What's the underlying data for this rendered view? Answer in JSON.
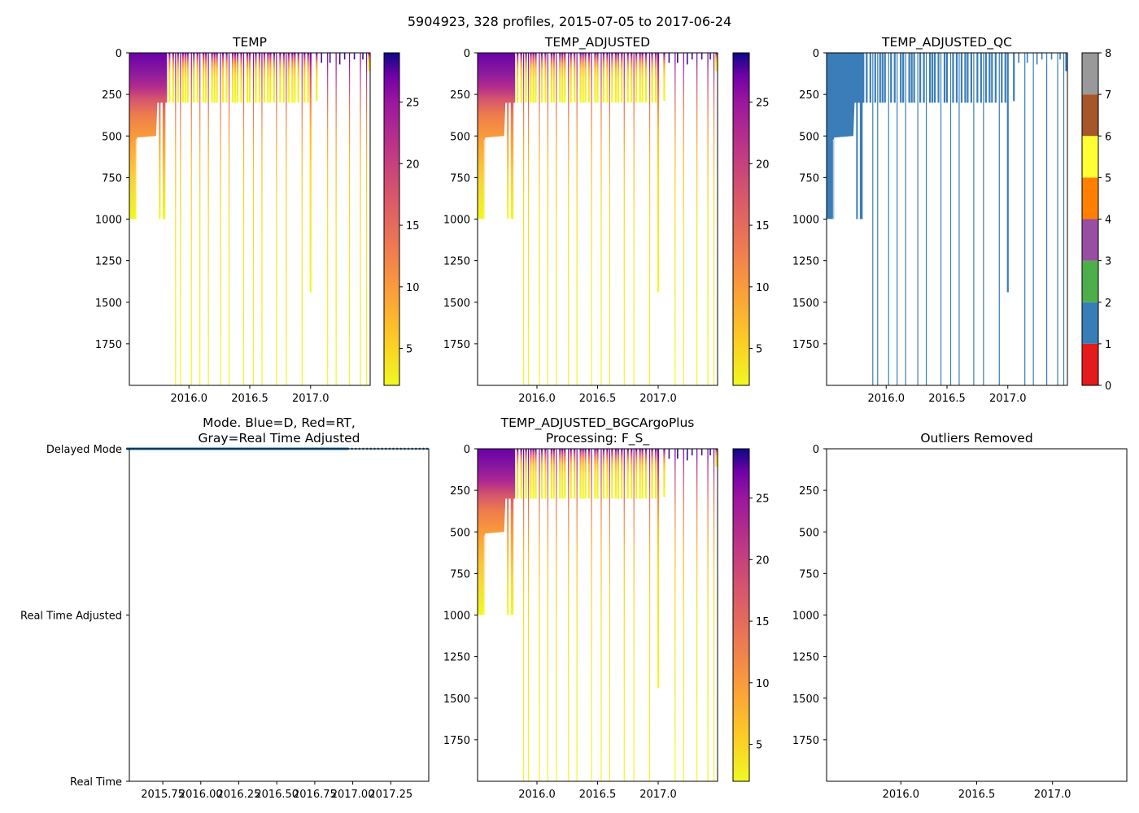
{
  "figure_title": "5904923, 328 profiles, 2015-07-05 to 2017-06-24",
  "chart_data": [
    {
      "type": "heatmap",
      "title": "TEMP",
      "xlim": [
        2015.51,
        2017.49
      ],
      "ylim": [
        2000,
        0
      ],
      "xticks": [
        2016.0,
        2016.5,
        2017.0
      ],
      "xtick_labels": [
        "2016.0",
        "2016.5",
        "2017.0"
      ],
      "yticks": [
        0,
        250,
        500,
        750,
        1000,
        1250,
        1500,
        1750
      ],
      "ytick_labels": [
        "0",
        "250",
        "500",
        "750",
        "1000",
        "1250",
        "1500",
        "1750"
      ],
      "colorbar": {
        "colormap": "plasma_r",
        "min": 2,
        "max": 29,
        "ticks": [
          5,
          10,
          15,
          20,
          25
        ],
        "tick_labels": [
          "5",
          "10",
          "15",
          "20",
          "25"
        ]
      }
    },
    {
      "type": "heatmap",
      "title": "TEMP_ADJUSTED",
      "xlim": [
        2015.51,
        2017.49
      ],
      "ylim": [
        2000,
        0
      ],
      "xticks": [
        2016.0,
        2016.5,
        2017.0
      ],
      "xtick_labels": [
        "2016.0",
        "2016.5",
        "2017.0"
      ],
      "yticks": [
        0,
        250,
        500,
        750,
        1000,
        1250,
        1500,
        1750
      ],
      "ytick_labels": [
        "0",
        "250",
        "500",
        "750",
        "1000",
        "1250",
        "1500",
        "1750"
      ],
      "colorbar": {
        "colormap": "plasma_r",
        "min": 2,
        "max": 29,
        "ticks": [
          5,
          10,
          15,
          20,
          25
        ],
        "tick_labels": [
          "5",
          "10",
          "15",
          "20",
          "25"
        ]
      }
    },
    {
      "type": "heatmap",
      "title": "TEMP_ADJUSTED_QC",
      "xlim": [
        2015.51,
        2017.49
      ],
      "ylim": [
        2000,
        0
      ],
      "xticks": [
        2016.0,
        2016.5,
        2017.0
      ],
      "xtick_labels": [
        "2016.0",
        "2016.5",
        "2017.0"
      ],
      "yticks": [
        0,
        250,
        500,
        750,
        1000,
        1250,
        1500,
        1750
      ],
      "ytick_labels": [
        "0",
        "250",
        "500",
        "750",
        "1000",
        "1250",
        "1500",
        "1750"
      ],
      "qc_value_shown": 1,
      "colorbar": {
        "type": "categorical",
        "min": 0,
        "max": 8,
        "ticks": [
          0,
          1,
          2,
          3,
          4,
          5,
          6,
          7,
          8
        ],
        "tick_labels": [
          "0",
          "1",
          "2",
          "3",
          "4",
          "5",
          "6",
          "7",
          "8"
        ],
        "colors": [
          "#e41a1c",
          "#377eb8",
          "#4daf4a",
          "#984ea3",
          "#ff7f00",
          "#ffff33",
          "#a65628",
          "#f781bf",
          "#999999"
        ]
      }
    },
    {
      "type": "scatter",
      "title": "Mode. Blue=D, Red=RT,\nGray=Real Time Adjusted",
      "xlim": [
        2015.53,
        2017.5
      ],
      "ylim": [
        0,
        2
      ],
      "xticks": [
        2015.75,
        2016.0,
        2016.25,
        2016.5,
        2016.75,
        2017.0,
        2017.25
      ],
      "xtick_labels": [
        "2015.75",
        "2016.00",
        "2016.25",
        "2016.50",
        "2016.75",
        "2017.00",
        "2017.25"
      ],
      "yticks": [
        0,
        1,
        2
      ],
      "ytick_labels": [
        "Real Time",
        "Real Time Adjusted",
        "Delayed Mode"
      ],
      "series": [
        {
          "name": "Delayed Mode",
          "color": "#1f77b4",
          "y": 2,
          "x_dense_range": [
            2015.51,
            2016.97
          ],
          "x_sparse_range": [
            2016.97,
            2017.49
          ]
        }
      ]
    },
    {
      "type": "heatmap",
      "title": "TEMP_ADJUSTED_BGCArgoPlus\nProcessing: F_S_",
      "xlim": [
        2015.51,
        2017.49
      ],
      "ylim": [
        2000,
        0
      ],
      "xticks": [
        2016.0,
        2016.5,
        2017.0
      ],
      "xtick_labels": [
        "2016.0",
        "2016.5",
        "2017.0"
      ],
      "yticks": [
        0,
        250,
        500,
        750,
        1000,
        1250,
        1500,
        1750
      ],
      "ytick_labels": [
        "0",
        "250",
        "500",
        "750",
        "1000",
        "1250",
        "1500",
        "1750"
      ],
      "colorbar": {
        "colormap": "plasma_r",
        "min": 2,
        "max": 29,
        "ticks": [
          5,
          10,
          15,
          20,
          25
        ],
        "tick_labels": [
          "5",
          "10",
          "15",
          "20",
          "25"
        ]
      }
    },
    {
      "type": "scatter",
      "title": "Outliers Removed",
      "xlim": [
        2015.51,
        2017.49
      ],
      "ylim": [
        2000,
        0
      ],
      "xticks": [
        2016.0,
        2016.5,
        2017.0
      ],
      "xtick_labels": [
        "2016.0",
        "2016.5",
        "2017.0"
      ],
      "yticks": [
        0,
        250,
        500,
        750,
        1000,
        1250,
        1500,
        1750
      ],
      "ytick_labels": [
        "0",
        "250",
        "500",
        "750",
        "1000",
        "1250",
        "1500",
        "1750"
      ],
      "series": []
    }
  ],
  "profiles": {
    "dense": {
      "start": 2015.51,
      "end": 2015.82,
      "count": 170,
      "depth_m": [
        [
          2015.51,
          1000
        ],
        [
          2015.56,
          995
        ],
        [
          2015.57,
          510
        ],
        [
          2015.73,
          500
        ],
        [
          2015.74,
          300
        ],
        [
          2015.82,
          300
        ]
      ]
    },
    "deep_dense": [
      2015.535,
      2015.55,
      2015.565,
      2015.76,
      2015.79,
      2015.8
    ],
    "sparse": [
      [
        2015.84,
        300
      ],
      [
        2015.87,
        300
      ],
      [
        2015.89,
        2000
      ],
      [
        2015.91,
        300
      ],
      [
        2015.93,
        2000
      ],
      [
        2015.95,
        300
      ],
      [
        2015.97,
        300
      ],
      [
        2015.99,
        300
      ],
      [
        2016.02,
        2000
      ],
      [
        2016.04,
        300
      ],
      [
        2016.07,
        300
      ],
      [
        2016.09,
        2000
      ],
      [
        2016.12,
        300
      ],
      [
        2016.14,
        300
      ],
      [
        2016.16,
        2000
      ],
      [
        2016.19,
        300
      ],
      [
        2016.21,
        300
      ],
      [
        2016.23,
        300
      ],
      [
        2016.26,
        2000
      ],
      [
        2016.28,
        300
      ],
      [
        2016.31,
        300
      ],
      [
        2016.33,
        2000
      ],
      [
        2016.36,
        300
      ],
      [
        2016.38,
        300
      ],
      [
        2016.4,
        300
      ],
      [
        2016.43,
        300
      ],
      [
        2016.45,
        2000
      ],
      [
        2016.48,
        300
      ],
      [
        2016.5,
        300
      ],
      [
        2016.53,
        2000
      ],
      [
        2016.55,
        300
      ],
      [
        2016.58,
        300
      ],
      [
        2016.6,
        2000
      ],
      [
        2016.62,
        300
      ],
      [
        2016.65,
        300
      ],
      [
        2016.67,
        300
      ],
      [
        2016.7,
        300
      ],
      [
        2016.72,
        2000
      ],
      [
        2016.75,
        300
      ],
      [
        2016.78,
        300
      ],
      [
        2016.8,
        2000
      ],
      [
        2016.82,
        300
      ],
      [
        2016.85,
        300
      ],
      [
        2016.87,
        300
      ],
      [
        2016.9,
        300
      ],
      [
        2016.93,
        2000
      ],
      [
        2016.95,
        300
      ],
      [
        2016.98,
        300
      ],
      [
        2017.0,
        1440
      ],
      [
        2017.05,
        290
      ],
      [
        2017.14,
        2000
      ],
      [
        2017.21,
        2000
      ],
      [
        2017.32,
        2000
      ],
      [
        2017.41,
        2000
      ],
      [
        2017.46,
        2000
      ],
      [
        2017.48,
        110
      ]
    ],
    "shallow_late": [
      [
        2017.09,
        60
      ],
      [
        2017.16,
        60
      ],
      [
        2017.24,
        70
      ],
      [
        2017.28,
        40
      ],
      [
        2017.36,
        40
      ],
      [
        2017.43,
        40
      ]
    ]
  }
}
